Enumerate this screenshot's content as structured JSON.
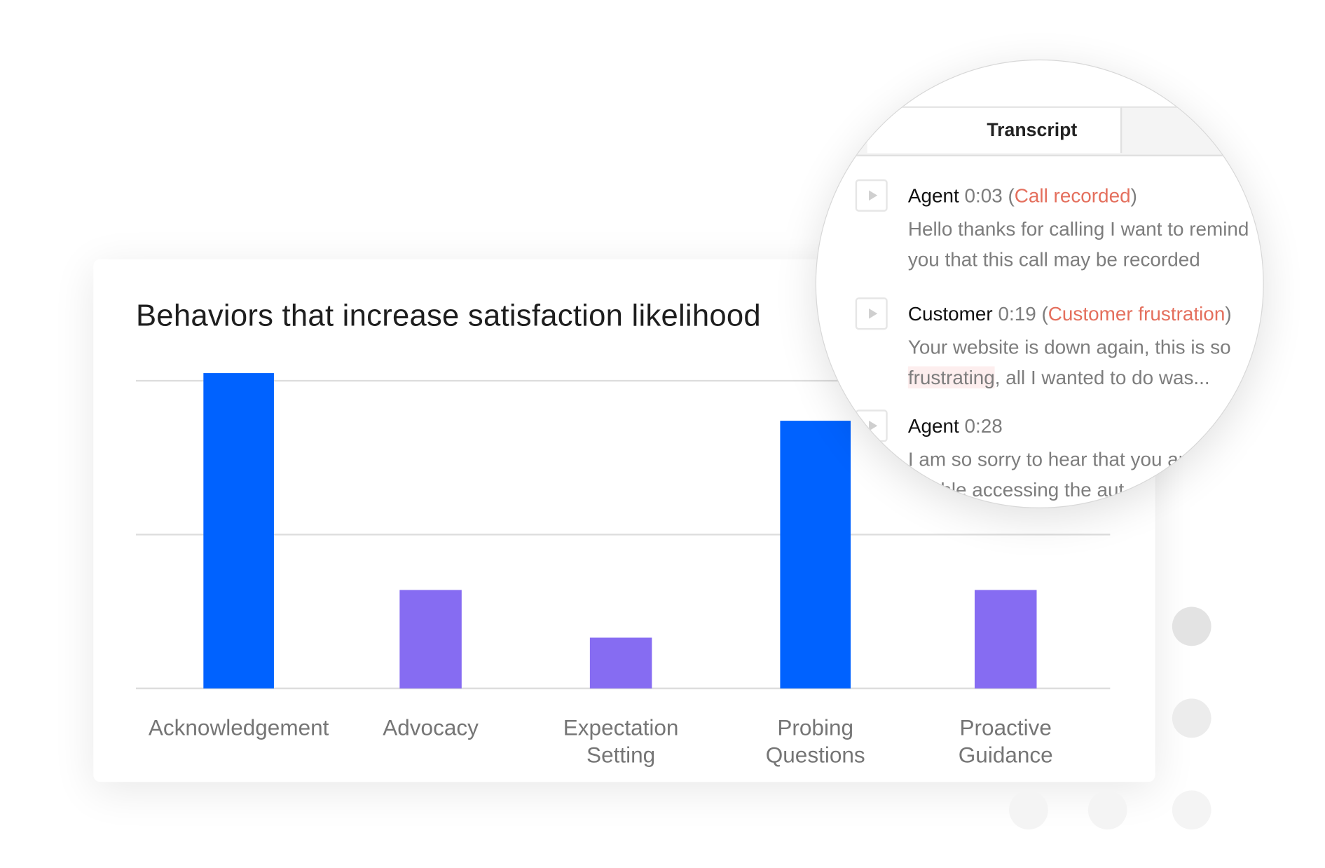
{
  "chart_data": {
    "type": "bar",
    "title": "Behaviors that increase satisfaction likelihood",
    "categories": [
      "Acknowledgement",
      "Advocacy",
      "Expectation\nSetting",
      "Probing\nQuestions",
      "Proactive\nGuidance"
    ],
    "values": [
      2.05,
      0.64,
      0.33,
      1.74,
      0.64
    ],
    "colors": [
      "#0062ff",
      "#866cf2",
      "#866cf2",
      "#0062ff",
      "#866cf2"
    ],
    "ylim": [
      0,
      2
    ],
    "gridlines": [
      0,
      1,
      2
    ],
    "grid": true,
    "xlabel": "",
    "ylabel": ""
  },
  "transcript": {
    "tab_label": "Transcript",
    "entries": [
      {
        "speaker": "Agent",
        "time": "0:03",
        "tag": "Call recorded",
        "lines": [
          "Hello thanks for calling I want to remind",
          "you that this call may be recorded"
        ]
      },
      {
        "speaker": "Customer",
        "time": "0:19",
        "tag": "Customer frustration",
        "line1": "Your website is down again, this is so",
        "highlight": "frustrating",
        "line2_rest": ", all I wanted to do was..."
      },
      {
        "speaker": "Agent",
        "time": "0:28",
        "lines": [
          "I am so sorry to hear that you are",
          "unable accessing the aut"
        ]
      }
    ]
  },
  "colors": {
    "accent_blue": "#0062ff",
    "accent_purple": "#866cf2",
    "tag_red": "#e46f5d"
  }
}
